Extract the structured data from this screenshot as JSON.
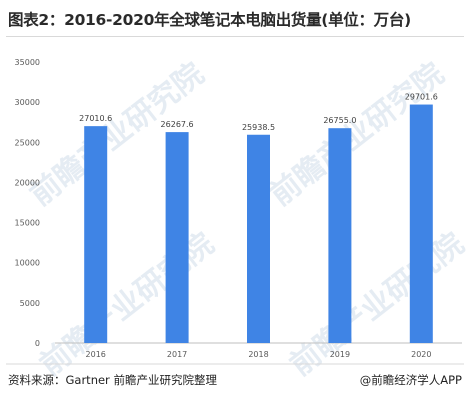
{
  "title": "图表2：2016-2020年全球笔记本电脑出货量(单位：万台)",
  "source": "资料来源：Gartner 前瞻产业研究院整理",
  "app_credit": "@前瞻经济学人APP",
  "watermark": "前瞻产业研究院",
  "colors": {
    "bar": "#3f84e5",
    "axis": "#bfbfbf",
    "grid": "#d9d9d9"
  },
  "chart_data": {
    "type": "bar",
    "categories": [
      "2016",
      "2017",
      "2018",
      "2019",
      "2020"
    ],
    "values": [
      27010.6,
      26267.6,
      25938.5,
      26755.0,
      29701.6
    ],
    "value_labels": [
      "27010.6",
      "26267.6",
      "25938.5",
      "26755.0",
      "29701.6"
    ],
    "ylim": [
      0,
      35000
    ],
    "yticks": [
      0,
      5000,
      10000,
      15000,
      20000,
      25000,
      30000,
      35000
    ],
    "grid": false
  }
}
